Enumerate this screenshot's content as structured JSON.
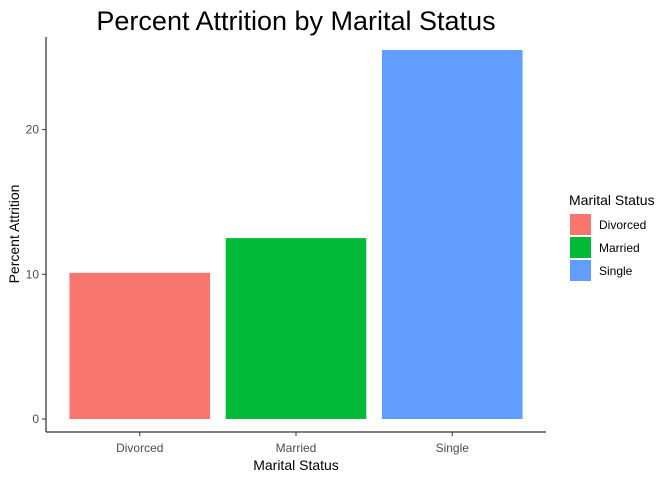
{
  "chart_data": {
    "type": "bar",
    "title": "Percent Attrition by Marital Status",
    "xlabel": "Marital Status",
    "ylabel": "Percent Attrition",
    "categories": [
      "Divorced",
      "Married",
      "Single"
    ],
    "values": [
      10.1,
      12.5,
      25.5
    ],
    "colors": [
      "#F8766D",
      "#00BA38",
      "#619CFF"
    ],
    "ylim": [
      -0.9,
      26.4
    ],
    "yticks": [
      0,
      10,
      20
    ],
    "grid": false,
    "legend": {
      "title": "Marital Status",
      "position": "right",
      "entries": [
        "Divorced",
        "Married",
        "Single"
      ]
    }
  }
}
